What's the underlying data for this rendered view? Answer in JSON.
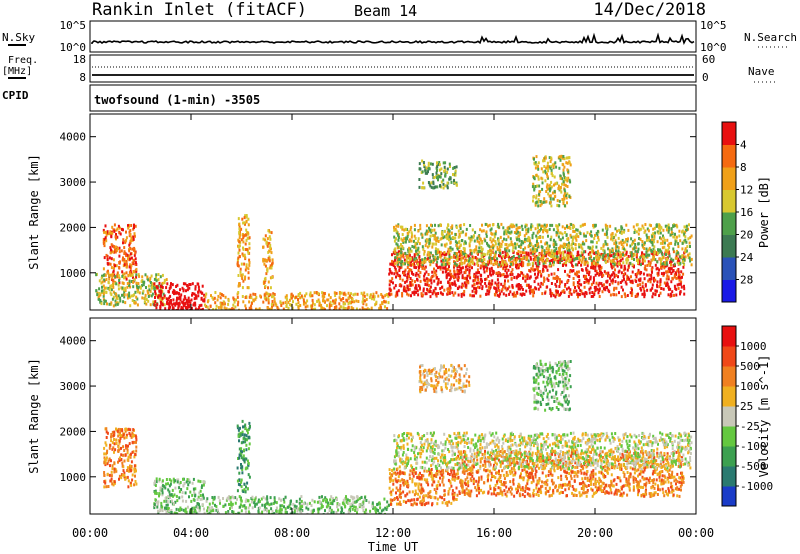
{
  "header": {
    "site": "Rankin Inlet (fitACF)",
    "beam": "Beam 14",
    "date": "14/Dec/2018"
  },
  "status_panels": {
    "nsky_label": "N.Sky",
    "nsky_ticks": [
      "10^5",
      "10^0"
    ],
    "nsearch_label": "N.Search",
    "nsearch_ticks": [
      "10^5",
      "10^0"
    ],
    "freq_label_1": "Freq.",
    "freq_label_2": "[MHz]",
    "freq_ticks": [
      "18",
      "8"
    ],
    "nave_label": "Nave",
    "nave_ticks": [
      "60",
      "0"
    ],
    "cpid_label": "CPID",
    "cpid_text": "twofsound (1-min) -3505"
  },
  "chart_data": [
    {
      "type": "heatmap",
      "name": "Power",
      "ylabel": "Slant Range [km]",
      "xlabel": "Time UT",
      "ylim": [
        180,
        4500
      ],
      "xlim": [
        0,
        24
      ],
      "yticks": [
        "1000",
        "2000",
        "3000",
        "4000"
      ],
      "xticks": [
        "00:00",
        "04:00",
        "08:00",
        "12:00",
        "16:00",
        "20:00",
        "00:00"
      ],
      "colorbar": {
        "label": "Power [dB]",
        "tick_labels": [
          "4",
          "8",
          "12",
          "16",
          "20",
          "24",
          "28"
        ],
        "colors": [
          "#1a1ae6",
          "#2a52b8",
          "#3c7a52",
          "#4ea04a",
          "#d8c830",
          "#f0a018",
          "#f56a10",
          "#e81010"
        ]
      },
      "regions": [
        {
          "t": [
            0.5,
            1.8
          ],
          "r": [
            800,
            2100
          ],
          "level": 6
        },
        {
          "t": [
            0.2,
            3.0
          ],
          "r": [
            300,
            1000
          ],
          "level": 4
        },
        {
          "t": [
            2.5,
            4.5
          ],
          "r": [
            180,
            800
          ],
          "level": 8
        },
        {
          "t": [
            3.0,
            4.0
          ],
          "r": [
            200,
            500
          ],
          "level": 8
        },
        {
          "t": [
            4.5,
            11.8
          ],
          "r": [
            180,
            600
          ],
          "level": 5
        },
        {
          "t": [
            5.8,
            6.3
          ],
          "r": [
            700,
            2300
          ],
          "level": 5
        },
        {
          "t": [
            6.8,
            7.2
          ],
          "r": [
            700,
            2000
          ],
          "level": 5
        },
        {
          "t": [
            11.8,
            23.5
          ],
          "r": [
            500,
            1500
          ],
          "level": 7
        },
        {
          "t": [
            12.0,
            23.8
          ],
          "r": [
            1200,
            2100
          ],
          "level": 4
        },
        {
          "t": [
            13.0,
            14.5
          ],
          "r": [
            2900,
            3500
          ],
          "level": 3
        },
        {
          "t": [
            17.5,
            19.0
          ],
          "r": [
            2500,
            3600
          ],
          "level": 4
        }
      ]
    },
    {
      "type": "heatmap",
      "name": "Velocity",
      "ylabel": "Slant Range [km]",
      "xlabel": "Time UT",
      "ylim": [
        180,
        4500
      ],
      "xlim": [
        0,
        24
      ],
      "yticks": [
        "1000",
        "2000",
        "3000",
        "4000"
      ],
      "xticks": [
        "00:00",
        "04:00",
        "08:00",
        "12:00",
        "16:00",
        "20:00",
        "00:00"
      ],
      "colorbar": {
        "label": "Velocity [m s^-1]",
        "tick_labels": [
          "1000",
          "500",
          "100",
          "25",
          "-25",
          "-100",
          "-500",
          "-1000"
        ],
        "colors": [
          "#1a3cc8",
          "#2a7a70",
          "#3ca050",
          "#64c840",
          "#c8c8b8",
          "#f0b020",
          "#f08020",
          "#f04818",
          "#e81010"
        ]
      },
      "regions": [
        {
          "t": [
            0.5,
            1.8
          ],
          "r": [
            800,
            2100
          ],
          "level": 6
        },
        {
          "t": [
            2.5,
            4.5
          ],
          "r": [
            180,
            1000
          ],
          "level": 3
        },
        {
          "t": [
            4.5,
            11.8
          ],
          "r": [
            180,
            600
          ],
          "level": 3
        },
        {
          "t": [
            5.8,
            6.3
          ],
          "r": [
            700,
            2300
          ],
          "level": 2
        },
        {
          "t": [
            11.8,
            14.5
          ],
          "r": [
            400,
            1200
          ],
          "level": 6
        },
        {
          "t": [
            14.5,
            23.5
          ],
          "r": [
            600,
            1600
          ],
          "level": 6
        },
        {
          "t": [
            12.0,
            23.8
          ],
          "r": [
            1200,
            2000
          ],
          "level": 4
        },
        {
          "t": [
            13.0,
            15.0
          ],
          "r": [
            2900,
            3500
          ],
          "level": 5
        },
        {
          "t": [
            17.5,
            19.0
          ],
          "r": [
            2500,
            3600
          ],
          "level": 3
        }
      ]
    }
  ]
}
